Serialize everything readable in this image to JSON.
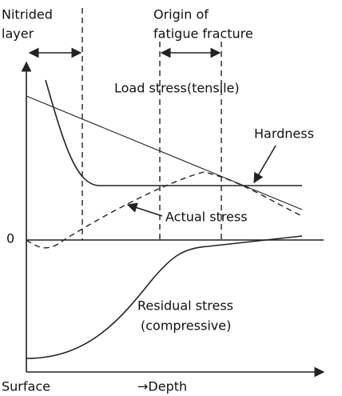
{
  "labels": {
    "nitrided_1": "Nitrided",
    "nitrided_2": "layer",
    "origin_1": "Origin of",
    "origin_2": "fatigue fracture",
    "load": "Load stress(tensile)",
    "hardness": "Hardness",
    "actual": "Actual stress",
    "zero": "0",
    "residual_1": "Residual stress",
    "residual_2": "(compressive)",
    "surface": "Surface",
    "depth": "→Depth"
  }
}
